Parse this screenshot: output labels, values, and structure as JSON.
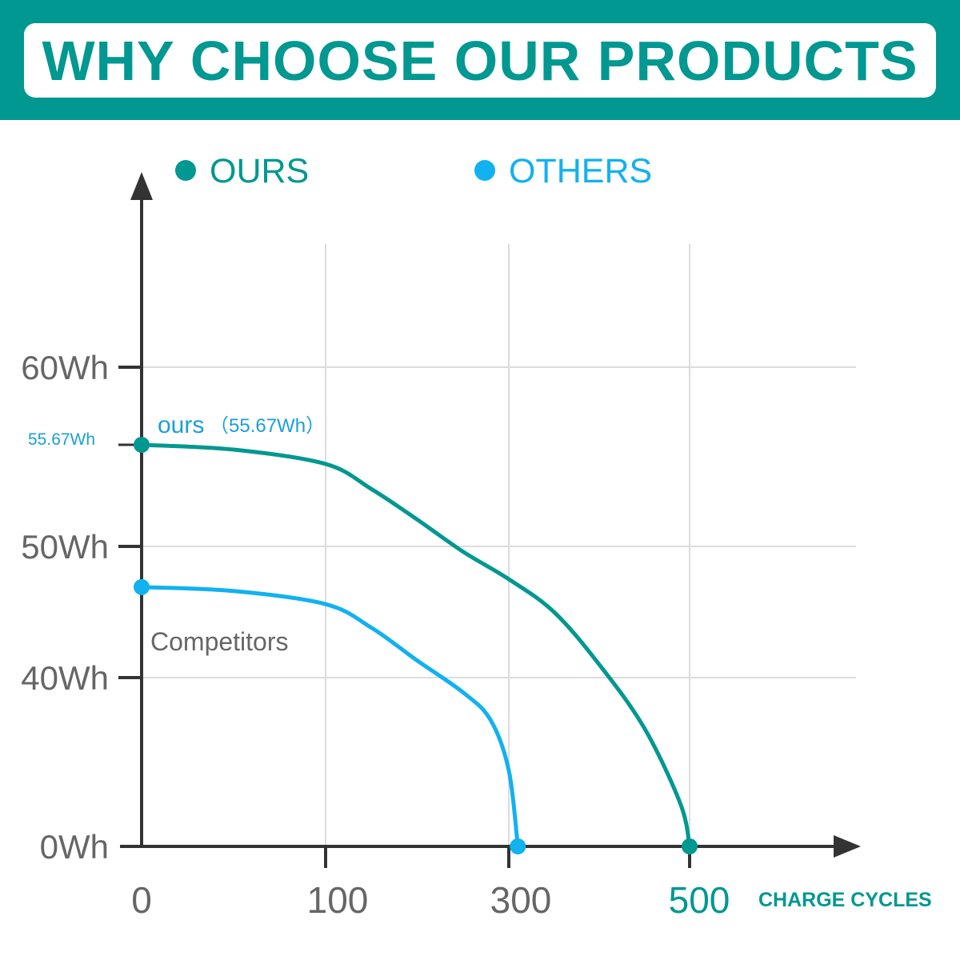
{
  "header": {
    "title": "WHY CHOOSE OUR PRODUCTS"
  },
  "colors": {
    "ours": "#009890",
    "others": "#12b1f0",
    "axis": "#333333",
    "grid": "#dcdcdc",
    "tick_label": "#666666",
    "header_bg": "#009890"
  },
  "chart_data": {
    "type": "line",
    "title": "WHY CHOOSE OUR PRODUCTS",
    "xlabel": "CHARGE CYCLES",
    "ylabel": "",
    "x_ticks": [
      {
        "value": 0,
        "label": "0"
      },
      {
        "value": 100,
        "label": "100"
      },
      {
        "value": 300,
        "label": "300"
      },
      {
        "value": 500,
        "label": "500"
      }
    ],
    "y_ticks": [
      {
        "value": 0,
        "label": "0Wh"
      },
      {
        "value": 40,
        "label": "40Wh"
      },
      {
        "value": 50,
        "label": "50Wh"
      },
      {
        "value": 60,
        "label": "60Wh"
      }
    ],
    "grid": true,
    "legend": {
      "placement": "top",
      "entries": [
        "OURS",
        "OTHERS"
      ]
    },
    "series": [
      {
        "name": "OURS",
        "points": [
          [
            0,
            55.67
          ],
          [
            50,
            55.4
          ],
          [
            100,
            54.6
          ],
          [
            150,
            53.2
          ],
          [
            200,
            51.5
          ],
          [
            250,
            49.6
          ],
          [
            300,
            47.5
          ],
          [
            350,
            45.0
          ],
          [
            400,
            41.0
          ],
          [
            450,
            28.0
          ],
          [
            490,
            10.0
          ],
          [
            500,
            0
          ]
        ]
      },
      {
        "name": "OTHERS",
        "points": [
          [
            0,
            46.9
          ],
          [
            50,
            46.6
          ],
          [
            100,
            45.6
          ],
          [
            150,
            43.8
          ],
          [
            200,
            41.3
          ],
          [
            250,
            36.5
          ],
          [
            280,
            30.0
          ],
          [
            300,
            18.0
          ],
          [
            310,
            0
          ]
        ]
      }
    ],
    "annotations": [
      {
        "id": "ours_name",
        "text": "ours"
      },
      {
        "id": "ours_value",
        "text": "（55.67Wh）"
      },
      {
        "id": "ours_axis",
        "text": "55.67Wh"
      },
      {
        "id": "competitors",
        "text": "Competitors"
      }
    ]
  }
}
